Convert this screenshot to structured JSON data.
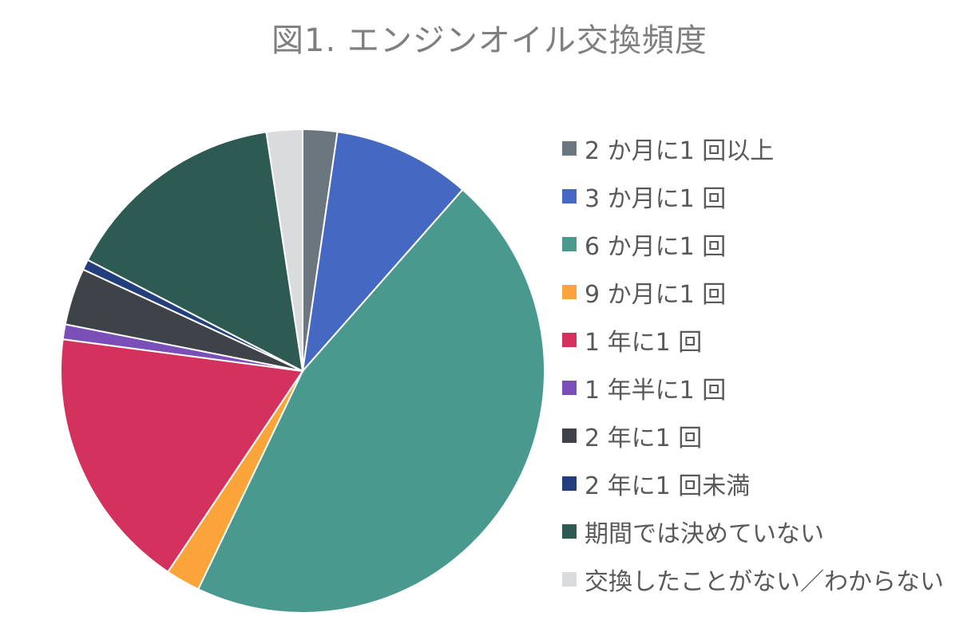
{
  "chart_data": {
    "type": "pie",
    "title": "図1. エンジンオイル交換頻度",
    "legend_position": "right",
    "categories": [
      "2 か月に1 回以上",
      "3 か月に1 回",
      "6 か月に1 回",
      "9 か月に1 回",
      "1 年に1 回",
      "1 年半に1 回",
      "2 年に1 回",
      "2 年に1 回未満",
      "期間では決めていない",
      "交換したことがない／わからない"
    ],
    "values": [
      2.3,
      9.2,
      45.6,
      2.3,
      17.7,
      1.0,
      3.8,
      0.7,
      15.0,
      2.4
    ],
    "colors": [
      "#6b767e",
      "#4568c2",
      "#4a998f",
      "#fba43a",
      "#d3325e",
      "#7b4fb8",
      "#3d4348",
      "#223e7c",
      "#2d5b54",
      "#d9dbdd"
    ]
  }
}
